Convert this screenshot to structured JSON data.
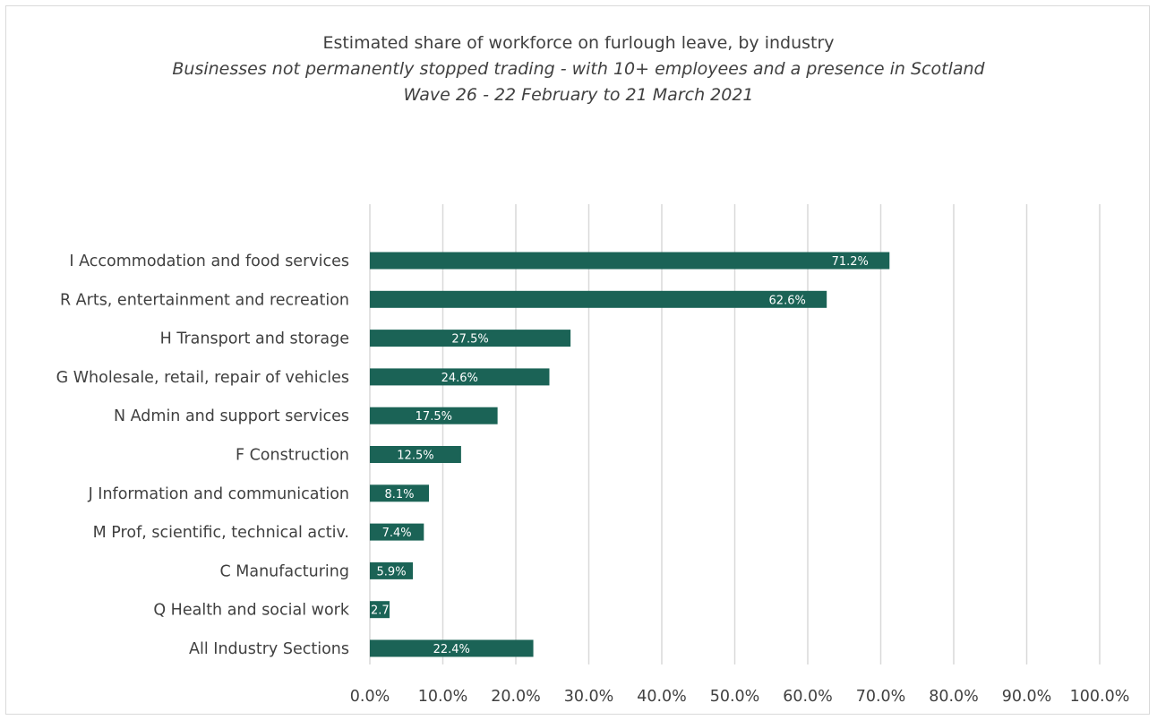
{
  "chart_data": {
    "type": "bar",
    "orientation": "horizontal",
    "title": "Estimated share of workforce on furlough leave, by industry",
    "subtitle_lines": [
      "Businesses not permanently stopped trading -  with 10+ employees and a presence in Scotland",
      "Wave 26 - 22 February to 21 March 2021"
    ],
    "categories": [
      "I Accommodation and food services",
      "R Arts, entertainment and recreation",
      "H Transport and storage",
      "G Wholesale, retail, repair of vehicles",
      "N Admin and support services",
      "F Construction",
      "J Information and communication",
      "M Prof, scientific, technical activ.",
      "C Manufacturing",
      "Q Health and social work",
      "All Industry Sections"
    ],
    "values": [
      71.2,
      62.6,
      27.5,
      24.6,
      17.5,
      12.5,
      8.1,
      7.4,
      5.9,
      2.7,
      22.4
    ],
    "data_labels": [
      "71.2%",
      "62.6%",
      "27.5%",
      "24.6%",
      "17.5%",
      "12.5%",
      "8.1%",
      "7.4%",
      "5.9%",
      "2.7",
      "22.4%"
    ],
    "x_ticks": [
      "0.0%",
      "10.0%",
      "20.0%",
      "30.0%",
      "40.0%",
      "50.0%",
      "60.0%",
      "70.0%",
      "80.0%",
      "90.0%",
      "100.0%"
    ],
    "xlim": [
      0,
      100
    ],
    "grid": "vertical",
    "bar_color": "#1b6356",
    "xlabel": "",
    "ylabel": ""
  }
}
